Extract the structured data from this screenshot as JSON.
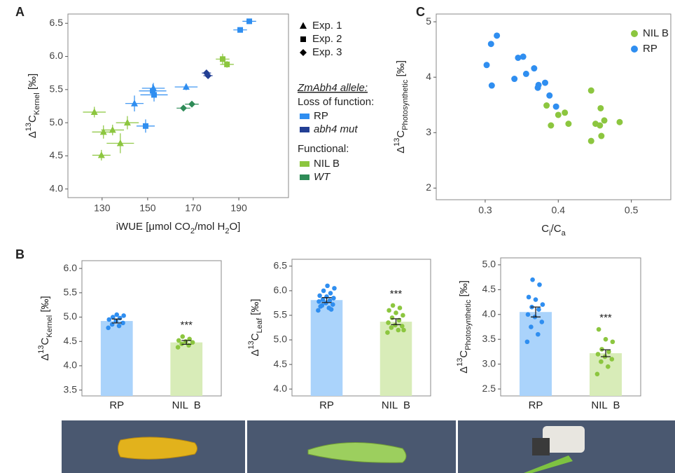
{
  "chart_data": [
    {
      "type": "scatter",
      "panel": "A",
      "x_label": [
        {
          "text": "iWUE [μmol CO"
        },
        {
          "text": "2",
          "pos": "sub"
        },
        {
          "text": "/mol H"
        },
        {
          "text": "2",
          "pos": "sub"
        },
        {
          "text": "O]"
        }
      ],
      "y_label": [
        {
          "text": "Δ"
        },
        {
          "text": "13",
          "pos": "sup"
        },
        {
          "text": "C"
        },
        {
          "text": "Kernel",
          "pos": "sub"
        },
        {
          "text": " [‰]"
        }
      ],
      "xlim": [
        115,
        211.8
      ],
      "ylim": [
        3.87,
        6.64
      ],
      "xticks": [
        130,
        150,
        170,
        190
      ],
      "yticks": [
        {
          "value": 4,
          "label": "4.0"
        },
        4.5,
        {
          "value": 5,
          "label": "5.0"
        },
        5.5,
        {
          "value": 6,
          "label": "6.0"
        },
        6.5
      ],
      "shape_legend": [
        {
          "label": "Exp. 1",
          "marker": "triangle"
        },
        {
          "label": "Exp. 2",
          "marker": "square"
        },
        {
          "label": "Exp. 3",
          "marker": "diamond"
        }
      ],
      "legend_title": "ZmAbh4 allele:",
      "groups": [
        {
          "title": "Loss of function:",
          "series": [
            {
              "name": "RP",
              "color": "#2f8ef0",
              "italic": false,
              "x": [
                194.6,
                190.6,
                166.9,
                152.5,
                152.2,
                152.8,
                144.2,
                149.1
              ],
              "y": [
                6.53,
                6.4,
                5.54,
                5.52,
                5.48,
                5.42,
                5.29,
                4.95
              ],
              "x_err": [
                3,
                3,
                5,
                5,
                6,
                6,
                4,
                4
              ],
              "y_err": [
                0.04,
                0.04,
                0.05,
                0.08,
                0.1,
                0.1,
                0.12,
                0.1
              ],
              "markers": [
                "square",
                "square",
                "triangle",
                "triangle",
                "square",
                "square",
                "triangle",
                "square"
              ]
            },
            {
              "name": "abh4 mut",
              "color": "#233f94",
              "italic": true,
              "x": [
                175.8,
                176.5
              ],
              "y": [
                5.75,
                5.71
              ],
              "x_err": [
                2,
                2
              ],
              "y_err": [
                0.05,
                0.04
              ],
              "markers": [
                "diamond",
                "diamond"
              ]
            }
          ]
        },
        {
          "title": "Functional:",
          "series": [
            {
              "name": "NIL B",
              "color": "#8cc63f",
              "italic": false,
              "x": [
                182.9,
                184.8,
                126.6,
                141.1,
                134.6,
                130.6,
                138.0,
                129.7
              ],
              "y": [
                5.96,
                5.88,
                5.16,
                5.0,
                4.89,
                4.86,
                4.69,
                4.51
              ],
              "x_err": [
                3,
                3,
                5,
                5,
                5,
                5,
                6,
                4
              ],
              "y_err": [
                0.08,
                0.05,
                0.08,
                0.1,
                0.08,
                0.1,
                0.15,
                0.08
              ],
              "markers": [
                "square",
                "square",
                "triangle",
                "triangle",
                "triangle",
                "triangle",
                "triangle",
                "triangle"
              ]
            },
            {
              "name": "WT",
              "color": "#2e8b57",
              "italic": true,
              "x": [
                165.7,
                169.4
              ],
              "y": [
                5.22,
                5.28
              ],
              "x_err": [
                3,
                3
              ],
              "y_err": [
                0.04,
                0.04
              ],
              "markers": [
                "diamond",
                "diamond"
              ]
            }
          ]
        }
      ]
    },
    {
      "type": "scatter",
      "panel": "C",
      "x_label": [
        {
          "text": "C"
        },
        {
          "text": "i",
          "pos": "sub"
        },
        {
          "text": "/C"
        },
        {
          "text": "a",
          "pos": "sub"
        }
      ],
      "y_label": [
        {
          "text": "Δ"
        },
        {
          "text": "13",
          "pos": "sup"
        },
        {
          "text": "C"
        },
        {
          "text": "Photosynthetic",
          "pos": "sub"
        },
        {
          "text": " [‰]"
        }
      ],
      "xlim": [
        0.233,
        0.554
      ],
      "ylim": [
        1.79,
        5.14
      ],
      "xticks": [
        0.3,
        0.4,
        0.5
      ],
      "yticks": [
        2,
        3,
        4,
        5
      ],
      "groups": [
        {
          "series": [
            {
              "name": "NIL B",
              "color": "#8cc63f",
              "x": [
                0.384,
                0.4,
                0.409,
                0.39,
                0.414,
                0.445,
                0.458,
                0.451,
                0.457,
                0.463,
                0.445,
                0.459,
                0.484
              ],
              "y": [
                3.49,
                3.32,
                3.36,
                3.13,
                3.16,
                3.76,
                3.44,
                3.16,
                3.13,
                3.22,
                2.85,
                2.94,
                3.19
              ]
            },
            {
              "name": "RP",
              "color": "#2f8ef0",
              "x": [
                0.316,
                0.308,
                0.302,
                0.309,
                0.345,
                0.352,
                0.356,
                0.34,
                0.367,
                0.373,
                0.382,
                0.372,
                0.388,
                0.397
              ],
              "y": [
                4.75,
                4.6,
                4.22,
                3.85,
                4.35,
                4.37,
                4.06,
                3.97,
                4.16,
                3.86,
                3.9,
                3.81,
                3.67,
                3.47
              ]
            }
          ]
        }
      ]
    },
    {
      "type": "bar",
      "panel": "B",
      "y_label": [
        {
          "text": "Δ"
        },
        {
          "text": "13",
          "pos": "sup"
        },
        {
          "text": "C"
        },
        {
          "text": "Kernel",
          "pos": "sub"
        },
        {
          "text": " [‰]"
        }
      ],
      "categories": [
        "RP",
        "NIL  B"
      ],
      "values": [
        4.92,
        4.48
      ],
      "errors": [
        0.04,
        0.04
      ],
      "colors": [
        "#2f8ef0",
        "#8cc63f"
      ],
      "bar_colors": [
        "#aad3fb",
        "#d8ecb8"
      ],
      "points": [
        [
          4.78,
          4.82,
          4.85,
          4.88,
          4.92,
          4.95,
          4.98,
          5.0,
          5.03,
          5.05
        ],
        [
          4.38,
          4.42,
          4.45,
          4.48,
          4.5,
          4.52,
          4.55,
          4.6
        ]
      ],
      "annotation": "***",
      "ylim": [
        3.38,
        6.16
      ],
      "yticks": [
        3.5,
        {
          "value": 4,
          "label": "4.0"
        },
        4.5,
        {
          "value": 5,
          "label": "5.0"
        },
        5.5,
        {
          "value": 6,
          "label": "6.0"
        }
      ]
    },
    {
      "type": "bar",
      "y_label": [
        {
          "text": "Δ"
        },
        {
          "text": "13",
          "pos": "sup"
        },
        {
          "text": "C"
        },
        {
          "text": "Leaf",
          "pos": "sub"
        },
        {
          "text": " [‰]"
        }
      ],
      "categories": [
        "RP",
        "NIL  B"
      ],
      "values": [
        5.81,
        5.37
      ],
      "errors": [
        0.05,
        0.06
      ],
      "colors": [
        "#2f8ef0",
        "#8cc63f"
      ],
      "bar_colors": [
        "#aad3fb",
        "#d8ecb8"
      ],
      "points": [
        [
          5.6,
          5.65,
          5.7,
          5.72,
          5.75,
          5.78,
          5.8,
          5.82,
          5.85,
          5.88,
          5.9,
          5.95,
          6.0,
          6.05,
          6.1,
          5.68,
          5.62
        ],
        [
          5.15,
          5.2,
          5.25,
          5.28,
          5.3,
          5.35,
          5.4,
          5.45,
          5.5,
          5.55,
          5.6,
          5.65,
          5.7,
          5.2
        ]
      ],
      "annotation": "***",
      "ylim": [
        3.86,
        6.64
      ],
      "yticks": [
        {
          "value": 4,
          "label": "4.0"
        },
        4.5,
        {
          "value": 5,
          "label": "5.0"
        },
        5.5,
        {
          "value": 6,
          "label": "6.0"
        },
        6.5
      ]
    },
    {
      "type": "bar",
      "y_label": [
        {
          "text": "Δ"
        },
        {
          "text": "13",
          "pos": "sup"
        },
        {
          "text": "C"
        },
        {
          "text": "Photosynthetic",
          "pos": "sub"
        },
        {
          "text": " [‰]"
        }
      ],
      "categories": [
        "RP",
        "NIL  B"
      ],
      "values": [
        4.05,
        3.22
      ],
      "errors": [
        0.1,
        0.07
      ],
      "colors": [
        "#2f8ef0",
        "#8cc63f"
      ],
      "bar_colors": [
        "#aad3fb",
        "#d8ecb8"
      ],
      "points": [
        [
          3.45,
          3.6,
          3.75,
          3.85,
          3.95,
          4.0,
          4.1,
          4.15,
          4.2,
          4.3,
          4.35,
          4.6,
          4.7
        ],
        [
          2.8,
          2.95,
          3.05,
          3.1,
          3.15,
          3.2,
          3.25,
          3.3,
          3.45,
          3.5,
          3.7
        ]
      ],
      "annotation": "***",
      "ylim": [
        2.36,
        5.14
      ],
      "yticks": [
        2.5,
        {
          "value": 3,
          "label": "3.0"
        },
        3.5,
        {
          "value": 4,
          "label": "4.0"
        },
        4.5,
        {
          "value": 5,
          "label": "5.0"
        }
      ]
    }
  ]
}
